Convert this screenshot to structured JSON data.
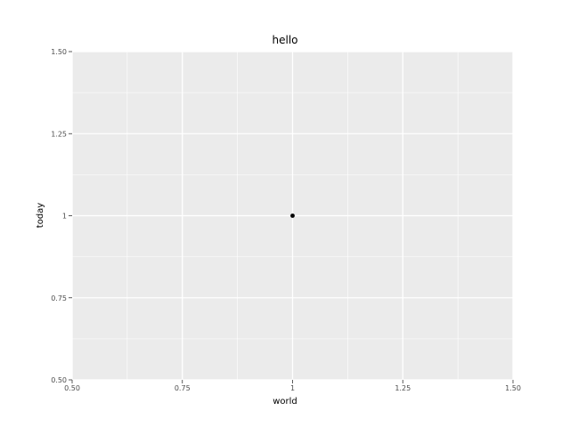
{
  "chart_data": {
    "type": "scatter",
    "title": "hello",
    "xlabel": "world",
    "ylabel": "today",
    "xlim": [
      0.5,
      1.5
    ],
    "ylim": [
      0.5,
      1.5
    ],
    "x_ticks": [
      0.5,
      0.75,
      1,
      1.25,
      1.5
    ],
    "x_tick_labels": [
      "0.50",
      "0.75",
      "1",
      "1.25",
      "1.50"
    ],
    "y_ticks": [
      0.5,
      0.75,
      1,
      1.25,
      1.5
    ],
    "y_tick_labels": [
      "0.50",
      "0.75",
      "1",
      "1.25",
      "1.50"
    ],
    "grid": true,
    "panel_background": "#ebebeb",
    "grid_color": "#ffffff",
    "point_color": "#000000",
    "series": [
      {
        "x": [
          1
        ],
        "y": [
          1
        ]
      }
    ]
  }
}
